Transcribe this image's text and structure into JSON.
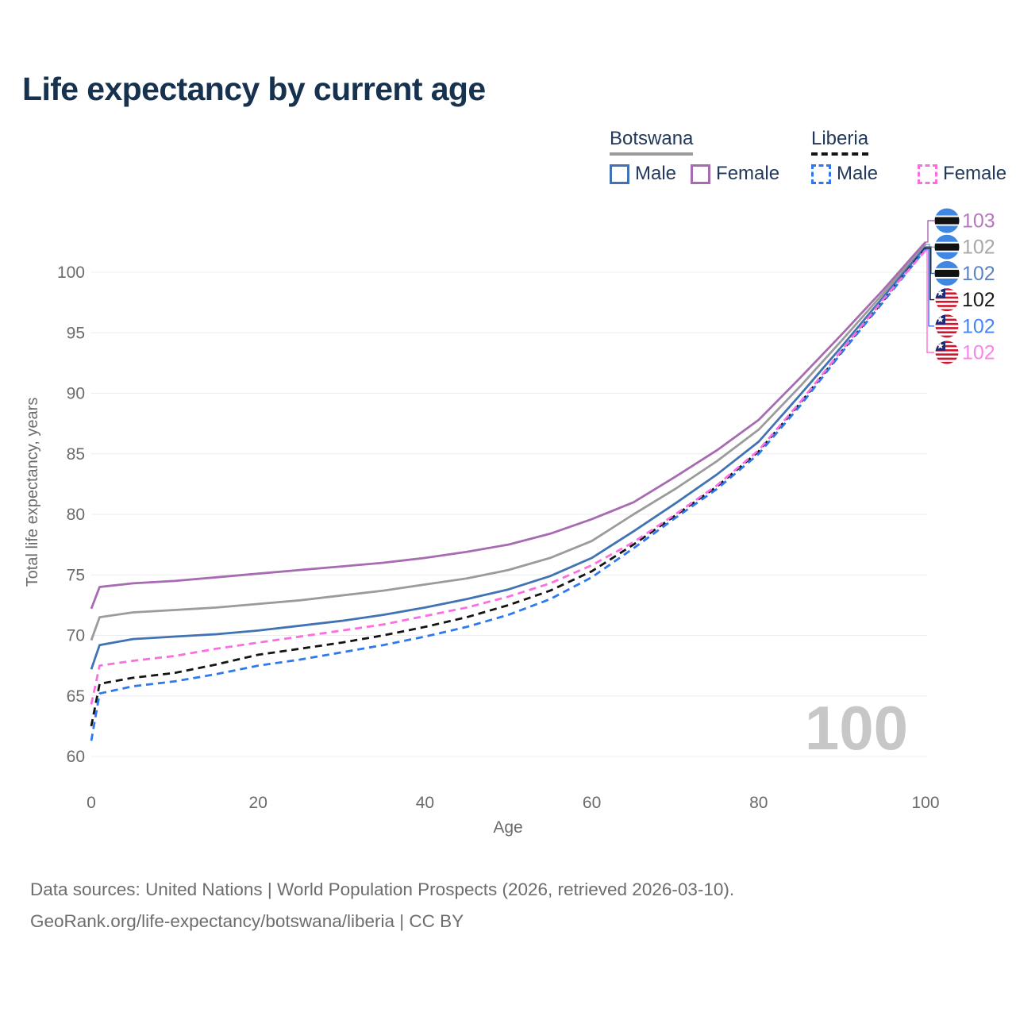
{
  "title": "Life expectancy by current age",
  "legend": {
    "groups": [
      {
        "name": "Botswana",
        "items": [
          {
            "label": "Male"
          },
          {
            "label": "Female"
          }
        ]
      },
      {
        "name": "Liberia",
        "items": [
          {
            "label": "Male"
          },
          {
            "label": "Female"
          }
        ]
      }
    ]
  },
  "watermark": "100",
  "footer": {
    "line1": "Data sources: United Nations | World Population Prospects (2026, retrieved 2026-03-10).",
    "line2": "GeoRank.org/life-expectancy/botswana/liberia | CC BY"
  },
  "colors": {
    "title_text": "#16324f",
    "legend_text": "#22395c",
    "axis_text": "#6b6b6b",
    "grid": "#ececec",
    "watermark_text": "#c7c7c7",
    "botswana_all": "#9b9b9b",
    "botswana_male": "#4173b4",
    "botswana_female": "#a76bb2",
    "liberia_all": "#141414",
    "liberia_male": "#2f78ee",
    "liberia_female": "#fb6ee2",
    "botswana_flag_blue": "#3f87e0",
    "botswana_flag_black": "#111111",
    "liberia_flag_red": "#d0162f",
    "liberia_flag_blue": "#1e2a78"
  },
  "chart_data": {
    "type": "line",
    "title": "Life expectancy by current age",
    "xlabel": "Age",
    "ylabel": "Total life expectancy, years",
    "x_ticks": [
      0,
      20,
      40,
      60,
      80,
      100
    ],
    "y_ticks": [
      60,
      65,
      70,
      75,
      80,
      85,
      90,
      95,
      100
    ],
    "xlim": [
      0,
      100
    ],
    "ylim": [
      60,
      103.6
    ],
    "grid": "horizontal",
    "legend_position": "top-right",
    "ages": [
      0,
      1,
      5,
      10,
      15,
      20,
      25,
      30,
      35,
      40,
      45,
      50,
      55,
      60,
      65,
      70,
      75,
      80,
      85,
      90,
      95,
      100
    ],
    "series": [
      {
        "id": "botswana_all",
        "label": "Botswana (both sexes)",
        "country": "Botswana",
        "sex": "All",
        "dashed": false,
        "color": "#9b9b9b",
        "end_label": "102",
        "end_label_color": "#a8a8a8",
        "values": [
          69.6,
          71.5,
          71.9,
          72.1,
          72.3,
          72.6,
          72.9,
          73.3,
          73.7,
          74.2,
          74.7,
          75.4,
          76.4,
          77.8,
          80.0,
          82.1,
          84.4,
          87.0,
          90.6,
          94.4,
          98.3,
          102.3
        ]
      },
      {
        "id": "botswana_male",
        "label": "Botswana Male",
        "country": "Botswana",
        "sex": "Male",
        "dashed": false,
        "color": "#4173b4",
        "end_label": "102",
        "end_label_color": "#5b84c8",
        "values": [
          67.2,
          69.2,
          69.7,
          69.9,
          70.1,
          70.4,
          70.8,
          71.2,
          71.7,
          72.3,
          73.0,
          73.8,
          74.9,
          76.4,
          78.6,
          80.9,
          83.3,
          86.0,
          89.9,
          93.9,
          98.0,
          102.1
        ]
      },
      {
        "id": "botswana_female",
        "label": "Botswana Female",
        "country": "Botswana",
        "sex": "Female",
        "dashed": false,
        "color": "#a76bb2",
        "end_label": "103",
        "end_label_color": "#b678bd",
        "values": [
          72.2,
          74.0,
          74.3,
          74.5,
          74.8,
          75.1,
          75.4,
          75.7,
          76.0,
          76.4,
          76.9,
          77.5,
          78.4,
          79.6,
          81.0,
          83.1,
          85.3,
          87.8,
          91.3,
          94.9,
          98.6,
          102.5
        ]
      },
      {
        "id": "liberia_all",
        "label": "Liberia (both sexes)",
        "country": "Liberia",
        "sex": "All",
        "dashed": true,
        "color": "#141414",
        "end_label": "102",
        "end_label_color": "#1a1a1a",
        "values": [
          62.5,
          66.0,
          66.5,
          66.9,
          67.6,
          68.4,
          68.9,
          69.4,
          70.0,
          70.7,
          71.5,
          72.5,
          73.7,
          75.3,
          77.5,
          79.9,
          82.3,
          85.2,
          89.2,
          93.5,
          97.7,
          102.0
        ]
      },
      {
        "id": "liberia_male",
        "label": "Liberia Male",
        "country": "Liberia",
        "sex": "Male",
        "dashed": true,
        "color": "#2f78ee",
        "end_label": "102",
        "end_label_color": "#4386f5",
        "values": [
          61.3,
          65.2,
          65.8,
          66.2,
          66.8,
          67.5,
          68.0,
          68.6,
          69.2,
          69.9,
          70.7,
          71.7,
          73.0,
          74.8,
          77.2,
          79.7,
          82.1,
          85.0,
          89.0,
          93.4,
          97.6,
          101.9
        ]
      },
      {
        "id": "liberia_female",
        "label": "Liberia Female",
        "country": "Liberia",
        "sex": "Female",
        "dashed": true,
        "color": "#fb6ee2",
        "end_label": "102",
        "end_label_color": "#fb83e9",
        "values": [
          64.3,
          67.5,
          67.9,
          68.3,
          68.9,
          69.4,
          69.9,
          70.4,
          70.9,
          71.6,
          72.3,
          73.2,
          74.3,
          75.8,
          77.7,
          80.0,
          82.4,
          85.3,
          89.3,
          93.6,
          97.8,
          101.8
        ]
      }
    ],
    "end_label_order": [
      "botswana_female",
      "botswana_all",
      "botswana_male",
      "liberia_all",
      "liberia_male",
      "liberia_female"
    ]
  }
}
